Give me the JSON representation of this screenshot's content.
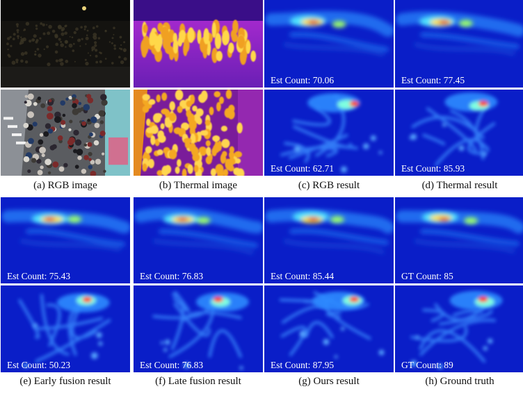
{
  "figure": {
    "groups": [
      {
        "columns": [
          {
            "caption": "(a) RGB image",
            "panels": [
              {
                "scene": "rgb-night",
                "count": ""
              },
              {
                "scene": "rgb-station",
                "count": ""
              }
            ]
          },
          {
            "caption": "(b) Thermal image",
            "panels": [
              {
                "scene": "thermal-night",
                "count": ""
              },
              {
                "scene": "thermal-station",
                "count": ""
              }
            ]
          },
          {
            "caption": "(c) RGB result",
            "panels": [
              {
                "scene": "density-top",
                "count": "Est Count: 70.06"
              },
              {
                "scene": "density-bottom",
                "count": "Est Count: 62.71"
              }
            ]
          },
          {
            "caption": "(d) Thermal result",
            "panels": [
              {
                "scene": "density-top",
                "count": "Est Count: 77.45"
              },
              {
                "scene": "density-bottom",
                "count": "Est Count: 85.93"
              }
            ]
          }
        ]
      },
      {
        "columns": [
          {
            "caption": "(e) Early fusion result",
            "panels": [
              {
                "scene": "density-top",
                "count": "Est Count: 75.43"
              },
              {
                "scene": "density-bottom",
                "count": "Est Count: 50.23"
              }
            ]
          },
          {
            "caption": "(f) Late fusion result",
            "panels": [
              {
                "scene": "density-top",
                "count": "Est Count: 76.83"
              },
              {
                "scene": "density-bottom",
                "count": "Est Count: 76.83"
              }
            ]
          },
          {
            "caption": "(g) Ours result",
            "panels": [
              {
                "scene": "density-top",
                "count": "Est Count: 85.44"
              },
              {
                "scene": "density-bottom",
                "count": "Est Count: 87.95"
              }
            ]
          },
          {
            "caption": "(h) Ground truth",
            "panels": [
              {
                "scene": "density-top",
                "count": "GT Count: 85"
              },
              {
                "scene": "density-bottom",
                "count": "GT Count: 89"
              }
            ]
          }
        ]
      }
    ]
  }
}
